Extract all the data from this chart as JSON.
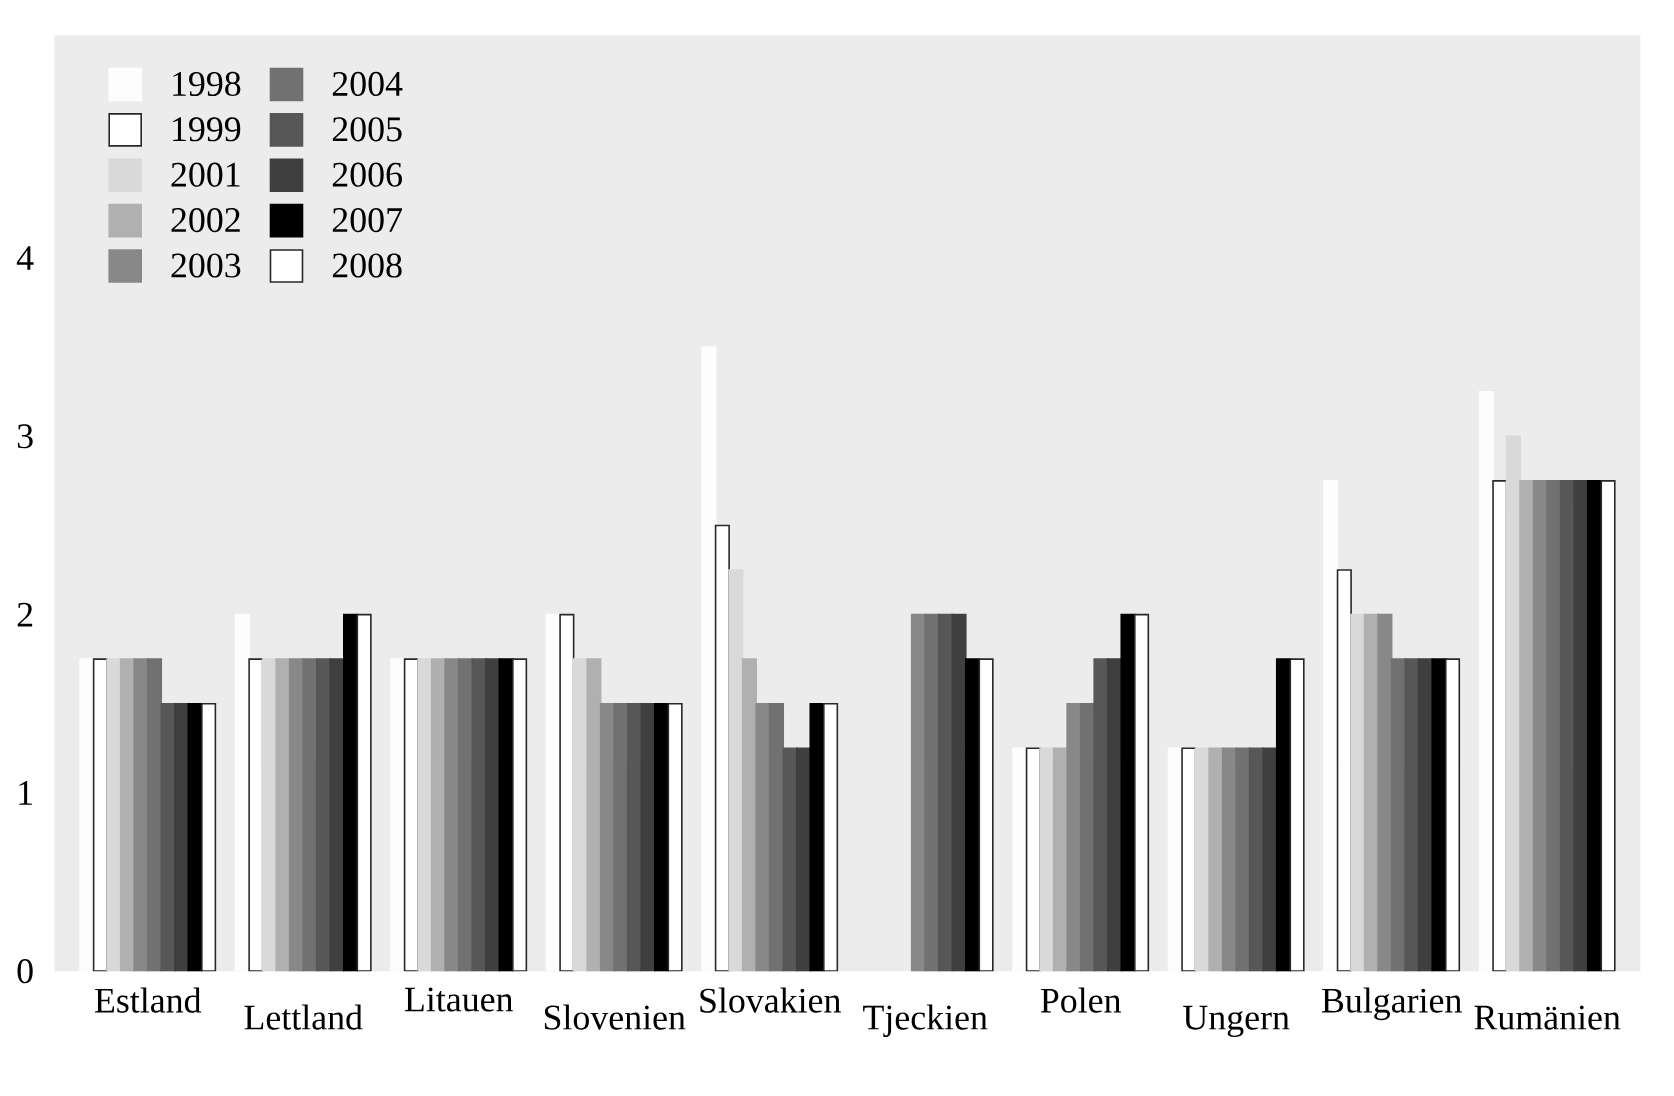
{
  "chart_data": {
    "type": "bar",
    "categories": [
      "Estland",
      "Lettland",
      "Litauen",
      "Slovenien",
      "Slovakien",
      "Tjeckien",
      "Polen",
      "Ungern",
      "Bulgarien",
      "Rumänien"
    ],
    "series": [
      {
        "name": "1998",
        "color": "#fdfdfd",
        "values": [
          1.75,
          2,
          1.75,
          2,
          3.5,
          null,
          1.25,
          1.25,
          2.75,
          3.25
        ]
      },
      {
        "name": "1999",
        "color": "#ffffff",
        "values": [
          1.75,
          1.75,
          1.75,
          2,
          2.5,
          null,
          1.25,
          1.25,
          2.25,
          2.75
        ]
      },
      {
        "name": "2001",
        "color": "#d9d9d9",
        "values": [
          1.75,
          1.75,
          1.75,
          1.75,
          2.25,
          null,
          1.25,
          1.25,
          2,
          3
        ]
      },
      {
        "name": "2002",
        "color": "#b0b0b0",
        "values": [
          1.75,
          1.75,
          1.75,
          1.75,
          1.75,
          null,
          1.25,
          1.25,
          2,
          2.75
        ]
      },
      {
        "name": "2003",
        "color": "#888888",
        "values": [
          1.75,
          1.75,
          1.75,
          1.5,
          1.5,
          2,
          1.5,
          1.25,
          2,
          2.75
        ]
      },
      {
        "name": "2004",
        "color": "#717171",
        "values": [
          1.75,
          1.75,
          1.75,
          1.5,
          1.5,
          2,
          1.5,
          1.25,
          1.75,
          2.75
        ]
      },
      {
        "name": "2005",
        "color": "#575757",
        "values": [
          1.5,
          1.75,
          1.75,
          1.5,
          1.25,
          2,
          1.75,
          1.25,
          1.75,
          2.75
        ]
      },
      {
        "name": "2006",
        "color": "#3f3f3f",
        "values": [
          1.5,
          1.75,
          1.75,
          1.5,
          1.25,
          2,
          1.75,
          1.25,
          1.75,
          2.75
        ]
      },
      {
        "name": "2007",
        "color": "#000000",
        "values": [
          1.5,
          2,
          1.75,
          1.5,
          1.5,
          1.75,
          2,
          1.75,
          1.75,
          2.75
        ]
      },
      {
        "name": "2008",
        "color": "#ffffff",
        "values": [
          1.5,
          2,
          1.75,
          1.5,
          1.5,
          1.75,
          2,
          1.75,
          1.75,
          2.75
        ]
      }
    ],
    "ylim": [
      0,
      5.25
    ],
    "yticks": [
      0,
      1,
      2,
      3,
      4
    ],
    "grid": false,
    "legend": "top left"
  }
}
